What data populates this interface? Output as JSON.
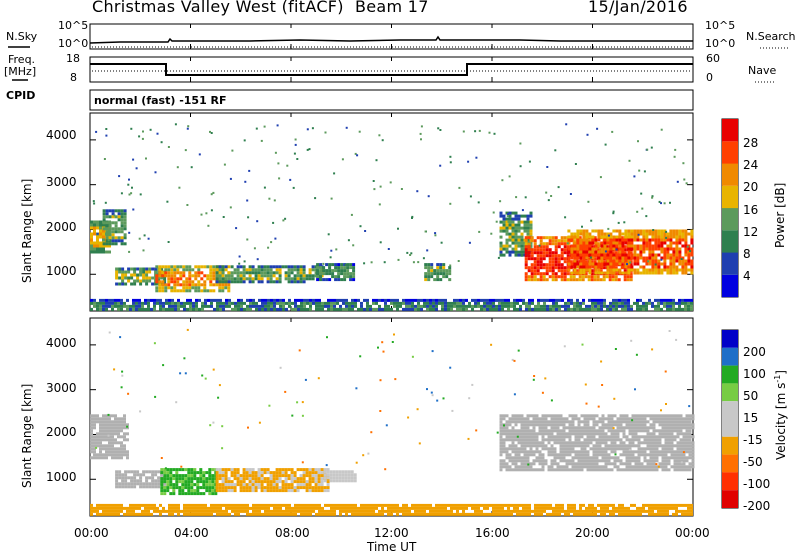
{
  "header": {
    "radar": "Christmas Valley West (fitACF)",
    "beam": "Beam 17",
    "date": "15/Jan/2016"
  },
  "nsky_panel": {
    "left_label": "N.Sky",
    "left_ticks": [
      "10^5",
      "10^0"
    ],
    "right_label": "N.Search",
    "right_ticks": [
      "10^5",
      "10^0"
    ]
  },
  "freq_panel": {
    "left_label_1": "Freq.",
    "left_label_2": "[MHz]",
    "left_ticks": [
      "18",
      "8"
    ],
    "right_label": "Nave",
    "right_ticks": [
      "60",
      "0"
    ]
  },
  "cpid": {
    "label": "CPID",
    "text": "normal (fast) -151 RF"
  },
  "power_panel": {
    "ylabel": "Slant Range [km]",
    "yticks": [
      "4000",
      "3000",
      "2000",
      "1000"
    ],
    "colorbar_label": "Power [dB]",
    "colorbar_ticks": [
      "28",
      "24",
      "20",
      "16",
      "12",
      "8",
      "4"
    ]
  },
  "velocity_panel": {
    "ylabel": "Slant Range [km]",
    "yticks": [
      "4000",
      "3000",
      "2000",
      "1000"
    ],
    "colorbar_label": "Velocity [m s",
    "colorbar_label_sup": "-1",
    "colorbar_label_end": "]",
    "colorbar_ticks": [
      "200",
      "100",
      "50",
      "15",
      "-15",
      "-50",
      "-100",
      "-200"
    ]
  },
  "xaxis": {
    "ticks": [
      "00:00",
      "04:00",
      "08:00",
      "12:00",
      "16:00",
      "20:00",
      "00:00"
    ],
    "label": "Time UT"
  },
  "colors": {
    "power_scale": [
      "#0000e0",
      "#1f3fb0",
      "#2f7f4f",
      "#5c9a5c",
      "#e8b400",
      "#f08a00",
      "#ff4000",
      "#e80000"
    ],
    "velocity_scale": [
      "#0000c8",
      "#1e6fc8",
      "#22aa22",
      "#77cc44",
      "#c8c8c8",
      "#c8c8c8",
      "#f0a000",
      "#ff7000",
      "#ff3000",
      "#e00000"
    ],
    "ground_scatter": "#b0b0b0"
  },
  "chart_data": [
    {
      "type": "heatmap",
      "title": "Power",
      "xlabel": "Time UT",
      "ylabel": "Slant Range [km]",
      "x_range_hours": [
        0,
        24
      ],
      "ylim": [
        180,
        4600
      ],
      "colorbar": {
        "label": "Power [dB]",
        "range": [
          0,
          32
        ],
        "ticks": [
          4,
          8,
          12,
          16,
          20,
          24,
          28
        ]
      },
      "regions": [
        {
          "t": [
            0.0,
            0.8
          ],
          "range": [
            1500,
            2200
          ],
          "power": 18
        },
        {
          "t": [
            0.5,
            1.4
          ],
          "range": [
            1700,
            2450
          ],
          "power": 14
        },
        {
          "t": [
            1.0,
            3.0
          ],
          "range": [
            800,
            1150
          ],
          "power": 15
        },
        {
          "t": [
            2.6,
            5.5
          ],
          "range": [
            650,
            1200
          ],
          "power": 22
        },
        {
          "t": [
            5.0,
            9.2
          ],
          "range": [
            820,
            1200
          ],
          "power": 14
        },
        {
          "t": [
            9.0,
            10.5
          ],
          "range": [
            900,
            1250
          ],
          "power": 12
        },
        {
          "t": [
            13.3,
            14.3
          ],
          "range": [
            850,
            1250
          ],
          "power": 13
        },
        {
          "t": [
            16.3,
            17.5
          ],
          "range": [
            1400,
            2400
          ],
          "power": 14
        },
        {
          "t": [
            17.3,
            21.5
          ],
          "range": [
            850,
            1850
          ],
          "power": 28
        },
        {
          "t": [
            19.0,
            24.0
          ],
          "range": [
            1000,
            2000
          ],
          "power": 26
        },
        {
          "t": [
            0.0,
            24.0
          ],
          "range": [
            200,
            450
          ],
          "power": 10
        }
      ]
    },
    {
      "type": "heatmap",
      "title": "Velocity",
      "xlabel": "Time UT",
      "ylabel": "Slant Range [km]",
      "x_range_hours": [
        0,
        24
      ],
      "ylim": [
        180,
        4600
      ],
      "colorbar": {
        "label": "Velocity [m s-1]",
        "ticks": [
          200,
          100,
          50,
          15,
          -15,
          -50,
          -100,
          -200
        ]
      },
      "regions": [
        {
          "t": [
            0.0,
            1.5
          ],
          "range": [
            1500,
            2450
          ],
          "velocity": 0,
          "ground_scatter": true
        },
        {
          "t": [
            1.0,
            3.0
          ],
          "range": [
            800,
            1200
          ],
          "velocity": 0,
          "ground_scatter": true
        },
        {
          "t": [
            2.8,
            5.0
          ],
          "range": [
            700,
            1250
          ],
          "velocity": 60
        },
        {
          "t": [
            5.0,
            9.5
          ],
          "range": [
            750,
            1250
          ],
          "velocity": -60
        },
        {
          "t": [
            9.3,
            10.5
          ],
          "range": [
            950,
            1200
          ],
          "velocity": -30
        },
        {
          "t": [
            16.3,
            24.0
          ],
          "range": [
            1200,
            2450
          ],
          "velocity": 0,
          "ground_scatter": true
        },
        {
          "t": [
            0.0,
            24.0
          ],
          "range": [
            200,
            450
          ],
          "velocity": -80
        }
      ]
    }
  ]
}
